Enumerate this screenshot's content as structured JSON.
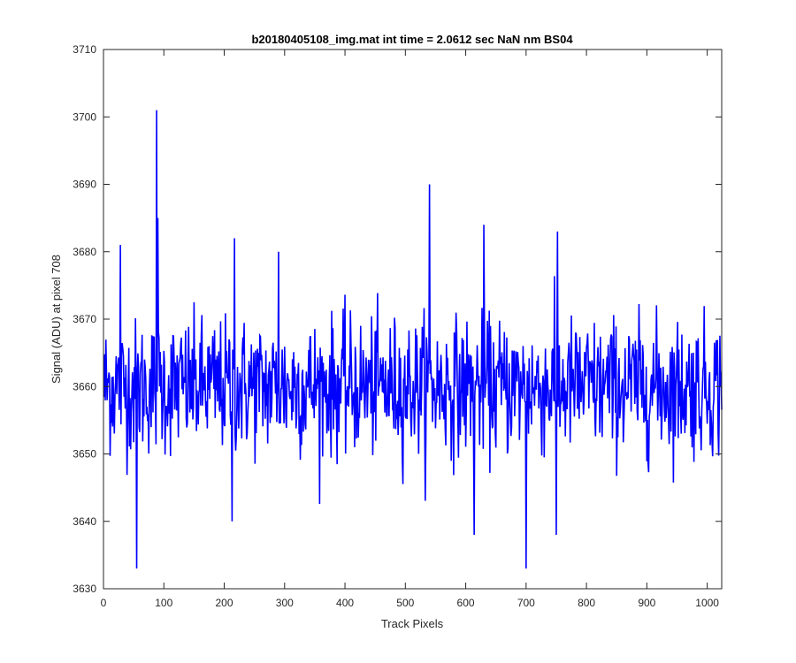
{
  "chart_data": {
    "type": "line",
    "title": "b20180405108_img.mat int time = 2.0612 sec  NaN nm BS04",
    "xlabel": "Track Pixels",
    "ylabel": "Signal (ADU) at pixel 708",
    "xlim": [
      0,
      1024
    ],
    "ylim": [
      3630,
      3710
    ],
    "xticks": [
      "0",
      "100",
      "200",
      "300",
      "400",
      "500",
      "600",
      "700",
      "800",
      "900",
      "1000"
    ],
    "yticks": [
      "3630",
      "3640",
      "3650",
      "3660",
      "3670",
      "3680",
      "3690",
      "3700",
      "3710"
    ],
    "grid": false,
    "legend": "none",
    "line_color": "#0000ff",
    "series": [
      {
        "x_start": 1,
        "x_step": 1,
        "mean": 3660,
        "noise_std": 5,
        "count": 1024,
        "notable_points": [
          {
            "x": 28,
            "y": 3681
          },
          {
            "x": 55,
            "y": 3633
          },
          {
            "x": 88,
            "y": 3701
          },
          {
            "x": 90,
            "y": 3685
          },
          {
            "x": 217,
            "y": 3682
          },
          {
            "x": 213,
            "y": 3640
          },
          {
            "x": 290,
            "y": 3680
          },
          {
            "x": 540,
            "y": 3690
          },
          {
            "x": 614,
            "y": 3638
          },
          {
            "x": 630,
            "y": 3684
          },
          {
            "x": 700,
            "y": 3633
          },
          {
            "x": 750,
            "y": 3638
          },
          {
            "x": 752,
            "y": 3683
          }
        ]
      }
    ]
  }
}
